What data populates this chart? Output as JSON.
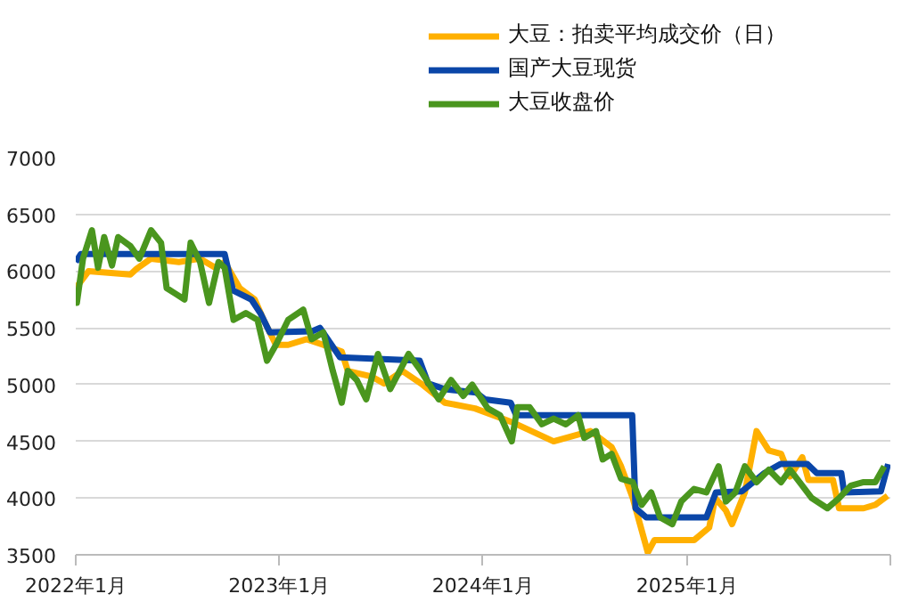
{
  "chart_data": {
    "type": "line",
    "legend": "top",
    "grid": "y",
    "line_style": "solid",
    "marker": "none",
    "xlim": [
      "2022-01-01",
      "2026-01-01"
    ],
    "xticks": [
      {
        "value": "2022-01-01",
        "label": "2022年1月"
      },
      {
        "value": "2023-01-01",
        "label": "2023年1月"
      },
      {
        "value": "2024-01-01",
        "label": "2024年1月"
      },
      {
        "value": "2025-01-01",
        "label": "2025年1月"
      },
      {
        "value": "2026-01-01",
        "label": null
      }
    ],
    "ylim": [
      3500,
      7000
    ],
    "yticks": [
      3500,
      4000,
      4500,
      5000,
      5500,
      6000,
      6500,
      7000
    ],
    "series": [
      {
        "name": "大豆：拍卖平均成交价（日）",
        "color": "#ffb000",
        "x": [
          "2022-01-01",
          "2022-01-24",
          "2022-04-09",
          "2022-04-20",
          "2022-05-16",
          "2022-07-05",
          "2022-08-12",
          "2022-09-08",
          "2022-09-25",
          "2022-10-22",
          "2022-11-18",
          "2022-12-04",
          "2022-12-26",
          "2023-01-17",
          "2023-02-19",
          "2023-03-21",
          "2023-04-23",
          "2023-05-04",
          "2023-06-16",
          "2023-07-08",
          "2023-08-10",
          "2023-09-12",
          "2023-10-25",
          "2023-12-18",
          "2024-02-22",
          "2024-05-07",
          "2024-07-12",
          "2024-08-19",
          "2024-09-05",
          "2024-09-26",
          "2024-10-23",
          "2024-11-04",
          "2025-01-14",
          "2025-02-10",
          "2025-02-21",
          "2025-03-12",
          "2025-03-23",
          "2025-04-15",
          "2025-05-06",
          "2025-05-28",
          "2025-06-19",
          "2025-07-05",
          "2025-07-27",
          "2025-08-07",
          "2025-09-20",
          "2025-10-01",
          "2025-11-14",
          "2025-12-05",
          "2025-12-27"
        ],
        "values": [
          5850,
          6000,
          5970,
          6020,
          6110,
          6080,
          6110,
          6030,
          6080,
          5850,
          5750,
          5570,
          5350,
          5350,
          5400,
          5350,
          5290,
          5120,
          5070,
          5010,
          5120,
          5010,
          4840,
          4790,
          4670,
          4500,
          4590,
          4450,
          4280,
          4000,
          3520,
          3630,
          3630,
          3740,
          4000,
          3890,
          3770,
          4050,
          4590,
          4420,
          4390,
          4190,
          4360,
          4160,
          4160,
          3910,
          3910,
          3940,
          4020
        ]
      },
      {
        "name": "国产大豆现货",
        "color": "#0a46a8",
        "x": [
          "2022-01-01",
          "2022-01-10",
          "2022-09-25",
          "2022-10-10",
          "2022-11-12",
          "2022-11-28",
          "2022-12-15",
          "2023-03-01",
          "2023-03-15",
          "2023-04-20",
          "2023-09-10",
          "2023-09-25",
          "2023-10-25",
          "2023-12-20",
          "2024-01-05",
          "2024-02-20",
          "2024-03-01",
          "2024-09-25",
          "2024-10-01",
          "2024-10-20",
          "2025-02-05",
          "2025-02-22",
          "2025-04-10",
          "2025-05-20",
          "2025-06-18",
          "2025-08-05",
          "2025-08-22",
          "2025-10-05",
          "2025-10-10",
          "2025-12-15",
          "2025-12-28"
        ],
        "values": [
          6080,
          6150,
          6150,
          5830,
          5750,
          5630,
          5460,
          5470,
          5500,
          5240,
          5210,
          5010,
          4960,
          4930,
          4870,
          4840,
          4730,
          4730,
          3910,
          3830,
          3830,
          4050,
          4060,
          4220,
          4300,
          4300,
          4220,
          4220,
          4050,
          4060,
          4300
        ]
      },
      {
        "name": "大豆收盘价",
        "color": "#4a961e",
        "x": [
          "2022-01-01",
          "2022-01-03",
          "2022-01-14",
          "2022-01-30",
          "2022-02-10",
          "2022-02-21",
          "2022-03-07",
          "2022-03-18",
          "2022-04-09",
          "2022-04-25",
          "2022-05-16",
          "2022-06-03",
          "2022-06-13",
          "2022-06-29",
          "2022-07-15",
          "2022-07-26",
          "2022-08-12",
          "2022-08-28",
          "2022-09-14",
          "2022-09-25",
          "2022-10-11",
          "2022-11-02",
          "2022-11-23",
          "2022-12-10",
          "2022-12-26",
          "2023-01-17",
          "2023-02-13",
          "2023-02-28",
          "2023-03-21",
          "2023-04-07",
          "2023-04-23",
          "2023-05-04",
          "2023-05-20",
          "2023-06-06",
          "2023-06-27",
          "2023-07-19",
          "2023-08-21",
          "2023-09-12",
          "2023-10-14",
          "2023-11-05",
          "2023-11-27",
          "2023-12-13",
          "2024-01-10",
          "2024-02-01",
          "2024-02-22",
          "2024-03-03",
          "2024-03-25",
          "2024-04-16",
          "2024-05-07",
          "2024-05-29",
          "2024-06-20",
          "2024-07-01",
          "2024-07-22",
          "2024-08-03",
          "2024-08-19",
          "2024-09-05",
          "2024-09-26",
          "2024-10-12",
          "2024-10-29",
          "2024-11-14",
          "2024-12-06",
          "2024-12-22",
          "2025-01-14",
          "2025-02-05",
          "2025-02-27",
          "2025-03-12",
          "2025-03-29",
          "2025-04-15",
          "2025-05-06",
          "2025-05-28",
          "2025-06-19",
          "2025-07-05",
          "2025-07-27",
          "2025-08-13",
          "2025-09-10",
          "2025-10-01",
          "2025-10-22",
          "2025-11-14",
          "2025-12-05",
          "2025-12-21"
        ],
        "values": [
          5850,
          5720,
          6110,
          6360,
          6030,
          6300,
          6050,
          6300,
          6220,
          6110,
          6360,
          6250,
          5850,
          5800,
          5750,
          6250,
          6080,
          5720,
          6080,
          6030,
          5570,
          5630,
          5570,
          5210,
          5350,
          5570,
          5660,
          5400,
          5460,
          5120,
          4840,
          5120,
          5040,
          4870,
          5270,
          4960,
          5270,
          5120,
          4870,
          5040,
          4900,
          5000,
          4790,
          4730,
          4500,
          4800,
          4800,
          4650,
          4700,
          4650,
          4730,
          4530,
          4590,
          4340,
          4390,
          4170,
          4140,
          3940,
          4050,
          3830,
          3770,
          3970,
          4080,
          4050,
          4280,
          3970,
          4050,
          4280,
          4140,
          4250,
          4140,
          4250,
          4110,
          4000,
          3910,
          4000,
          4110,
          4140,
          4140,
          4280
        ]
      }
    ]
  }
}
